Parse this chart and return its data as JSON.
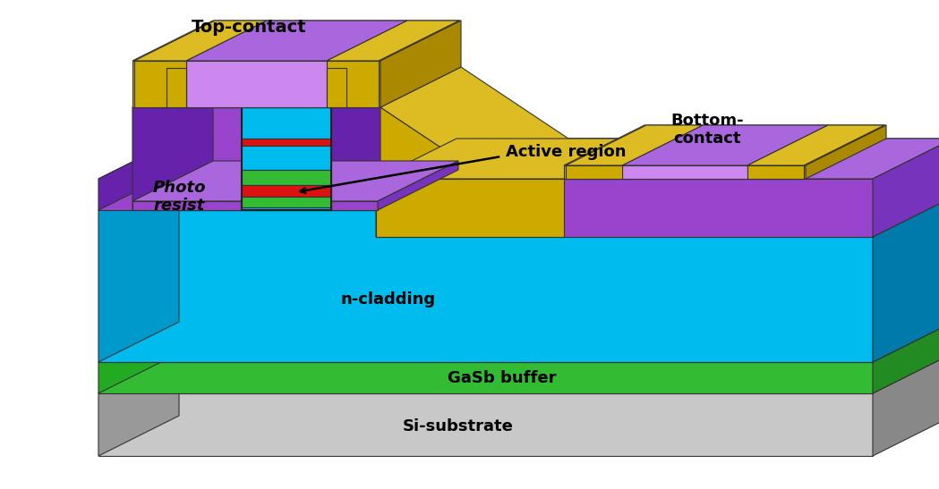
{
  "colors": {
    "cyan": "#00BBEE",
    "cyan_dark": "#0099CC",
    "cyan_side": "#007AAA",
    "cyan_top": "#00AADD",
    "purple": "#9944CC",
    "purple_light": "#CC88EE",
    "purple_dark": "#6622AA",
    "purple_top": "#AA66DD",
    "purple_side": "#7733BB",
    "gold": "#CCAA00",
    "gold_light": "#EEDD55",
    "gold_dark": "#AA8800",
    "gold_top": "#DDBB22",
    "green": "#228B22",
    "green_bright": "#33BB33",
    "green_top": "#44CC44",
    "red": "#DD1111",
    "gray_light": "#C8C8C8",
    "gray_mid": "#AAAAAA",
    "gray_dark": "#888888",
    "gray_side": "#999999",
    "white": "#FFFFFF",
    "black": "#000000"
  },
  "labels": {
    "top_contact": "Top-contact",
    "active_region": "Active region",
    "photo_resist": "Photo\nresist",
    "n_cladding": "n-cladding",
    "gasb_buffer": "GaSb buffer",
    "si_substrate": "Si-substrate",
    "bottom_contact": "Bottom-\ncontact"
  },
  "figsize": [
    10.49,
    5.47
  ],
  "dpi": 100
}
